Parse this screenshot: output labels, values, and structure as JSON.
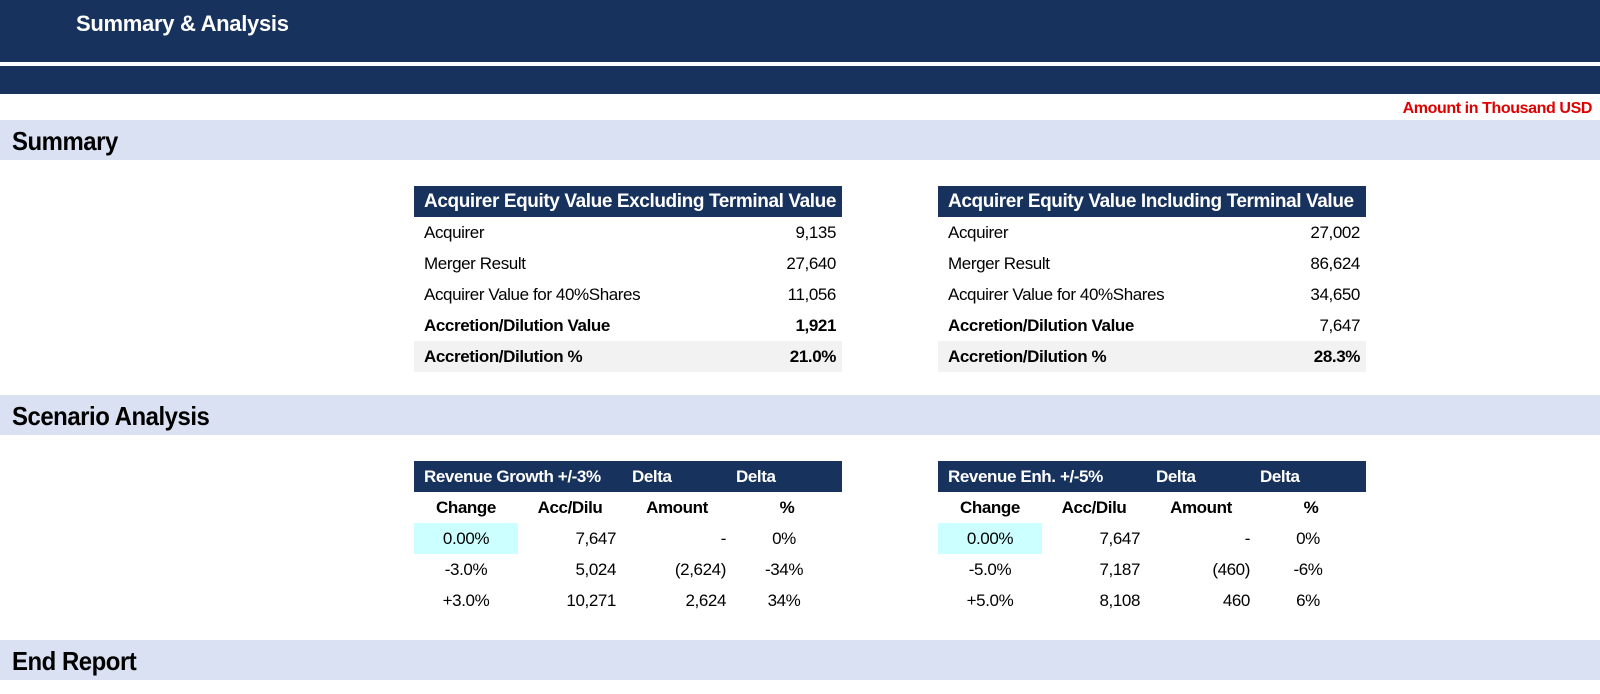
{
  "header": {
    "title": "Summary & Analysis"
  },
  "unit_note": "Amount in Thousand USD",
  "sections": {
    "summary": "Summary",
    "scenario": "Scenario Analysis",
    "end": "End Report"
  },
  "summary_tables": [
    {
      "title": "Acquirer Equity Value Excluding Terminal Value",
      "rows": [
        {
          "label": "Acquirer",
          "value": "9,135"
        },
        {
          "label": "Merger Result",
          "value": "27,640"
        },
        {
          "label": "Acquirer Value for 40%Shares",
          "value": "11,056"
        },
        {
          "label": "Accretion/Dilution Value",
          "value": "1,921"
        },
        {
          "label": "Accretion/Dilution %",
          "value": "21.0%"
        }
      ]
    },
    {
      "title": "Acquirer Equity Value Including Terminal Value",
      "rows": [
        {
          "label": "Acquirer",
          "value": "27,002"
        },
        {
          "label": "Merger Result",
          "value": "86,624"
        },
        {
          "label": "Acquirer Value for 40%Shares",
          "value": "34,650"
        },
        {
          "label": "Accretion/Dilution Value",
          "value": "7,647"
        },
        {
          "label": "Accretion/Dilution %",
          "value": "28.3%"
        }
      ]
    }
  ],
  "scenario_tables": [
    {
      "header": [
        "Revenue Growth +/-3%",
        "Delta",
        "Delta"
      ],
      "subheader": [
        "Change",
        "Acc/Dilu",
        "Amount",
        "%"
      ],
      "rows": [
        [
          "0.00%",
          "7,647",
          "-",
          "0%"
        ],
        [
          "-3.0%",
          "5,024",
          "(2,624)",
          "-34%"
        ],
        [
          "+3.0%",
          "10,271",
          "2,624",
          "34%"
        ]
      ]
    },
    {
      "header": [
        "Revenue Enh. +/-5%",
        "Delta",
        "Delta"
      ],
      "subheader": [
        "Change",
        "Acc/Dilu",
        "Amount",
        "%"
      ],
      "rows": [
        [
          "0.00%",
          "7,647",
          "-",
          "0%"
        ],
        [
          "-5.0%",
          "7,187",
          "(460)",
          "-6%"
        ],
        [
          "+5.0%",
          "8,108",
          "460",
          "6%"
        ]
      ]
    }
  ]
}
